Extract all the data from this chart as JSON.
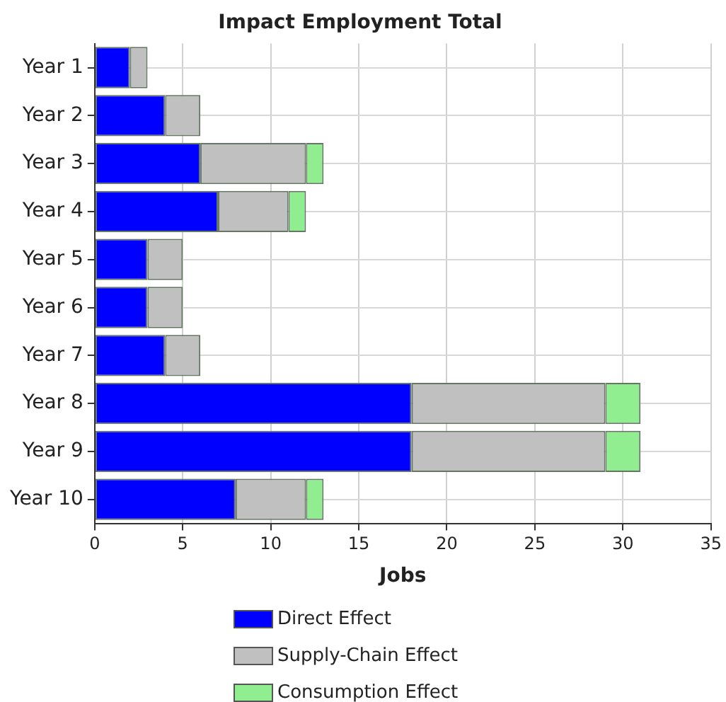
{
  "chart_data": {
    "type": "bar",
    "title": "Impact Employment Total",
    "xlabel": "Jobs",
    "orientation": "horizontal",
    "stacked": true,
    "categories": [
      "Year 1",
      "Year 2",
      "Year 3",
      "Year 4",
      "Year 5",
      "Year 6",
      "Year 7",
      "Year 8",
      "Year 9",
      "Year 10"
    ],
    "series": [
      {
        "name": "Direct Effect",
        "color": "#0000ff",
        "values": [
          2,
          4,
          6,
          7,
          3,
          3,
          4,
          18,
          18,
          8
        ]
      },
      {
        "name": "Supply-Chain Effect",
        "color": "#c0c0c0",
        "values": [
          1,
          2,
          6,
          4,
          2,
          2,
          2,
          11,
          11,
          4
        ]
      },
      {
        "name": "Consumption Effect",
        "color": "#90ee90",
        "values": [
          0,
          0,
          1,
          1,
          0,
          0,
          0,
          2,
          2,
          1
        ]
      }
    ],
    "xlim": [
      0,
      35
    ],
    "xticks": [
      0,
      5,
      10,
      15,
      20,
      25,
      30,
      35
    ],
    "grid": true,
    "legend": "bottom"
  }
}
